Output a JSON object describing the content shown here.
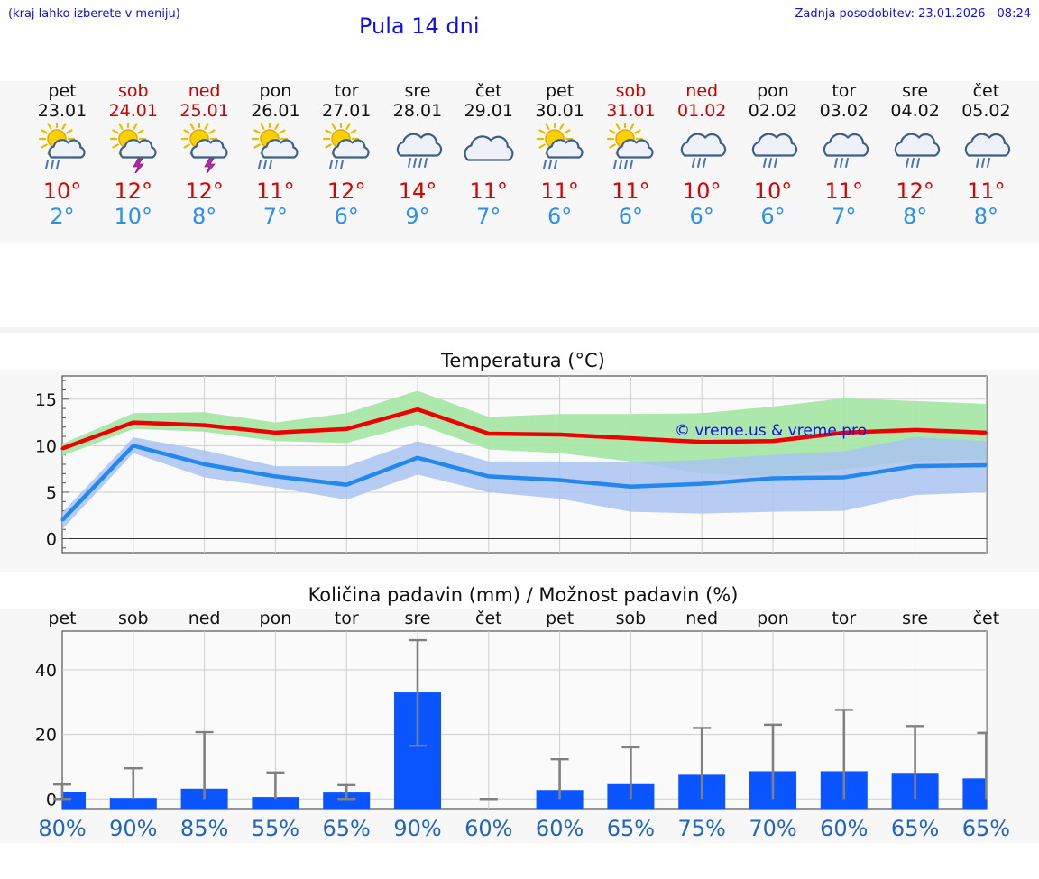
{
  "header": {
    "hint": "(kraj lahko izberete v meniju)",
    "title": "Pula 14 dni",
    "updated": "Zadnja posodobitev: 23.01.2026 - 08:24"
  },
  "days": [
    {
      "name": "pet",
      "date": "23.01",
      "weekend": false,
      "icon": "sun-cloud-rain-icon",
      "tmax": "10°",
      "tmin": "2°"
    },
    {
      "name": "sob",
      "date": "24.01",
      "weekend": true,
      "icon": "sun-cloud-thunder-icon",
      "tmax": "12°",
      "tmin": "10°"
    },
    {
      "name": "ned",
      "date": "25.01",
      "weekend": true,
      "icon": "sun-cloud-thunder-icon",
      "tmax": "12°",
      "tmin": "8°"
    },
    {
      "name": "pon",
      "date": "26.01",
      "weekend": false,
      "icon": "sun-cloud-rain-icon",
      "tmax": "11°",
      "tmin": "7°"
    },
    {
      "name": "tor",
      "date": "27.01",
      "weekend": false,
      "icon": "sun-cloud-rain-icon",
      "tmax": "12°",
      "tmin": "6°"
    },
    {
      "name": "sre",
      "date": "28.01",
      "weekend": false,
      "icon": "cloud-heavy-rain-icon",
      "tmax": "14°",
      "tmin": "9°"
    },
    {
      "name": "čet",
      "date": "29.01",
      "weekend": false,
      "icon": "cloud-icon",
      "tmax": "11°",
      "tmin": "7°"
    },
    {
      "name": "pet",
      "date": "30.01",
      "weekend": false,
      "icon": "sun-cloud-rain-icon",
      "tmax": "11°",
      "tmin": "6°"
    },
    {
      "name": "sob",
      "date": "31.01",
      "weekend": true,
      "icon": "sun-cloud-heavy-rain-icon",
      "tmax": "11°",
      "tmin": "6°"
    },
    {
      "name": "ned",
      "date": "01.02",
      "weekend": true,
      "icon": "cloud-rain-icon",
      "tmax": "10°",
      "tmin": "6°"
    },
    {
      "name": "pon",
      "date": "02.02",
      "weekend": false,
      "icon": "cloud-rain-icon",
      "tmax": "10°",
      "tmin": "6°"
    },
    {
      "name": "tor",
      "date": "03.02",
      "weekend": false,
      "icon": "cloud-rain-icon",
      "tmax": "11°",
      "tmin": "7°"
    },
    {
      "name": "sre",
      "date": "04.02",
      "weekend": false,
      "icon": "cloud-rain-icon",
      "tmax": "12°",
      "tmin": "8°"
    },
    {
      "name": "čet",
      "date": "05.02",
      "weekend": false,
      "icon": "cloud-rain-icon",
      "tmax": "11°",
      "tmin": "8°"
    }
  ],
  "colors": {
    "max_line": "#ee0000",
    "min_line": "#2288ee",
    "max_band": "#a8e6a8",
    "min_band": "#a9c3f0",
    "bar": "#0a55ff",
    "error": "#808080",
    "pct": "#2266bb",
    "accent": "#1010e0"
  },
  "chart_data": [
    {
      "type": "line",
      "title": "Temperatura (°C)",
      "watermark": "© vreme.us & vreme.pro",
      "ylim": [
        -1.5,
        17.5
      ],
      "yticks": [
        0,
        5,
        10,
        15
      ],
      "x": [
        0,
        1,
        2,
        3,
        4,
        5,
        6,
        7,
        8,
        9,
        10,
        11,
        12,
        13
      ],
      "series": [
        {
          "name": "max",
          "values": [
            9.7,
            12.5,
            12.2,
            11.4,
            11.8,
            13.9,
            11.3,
            11.2,
            10.8,
            10.4,
            10.5,
            11.4,
            11.7,
            11.4
          ],
          "band_low": [
            8.9,
            11.8,
            11.5,
            10.5,
            10.3,
            12.3,
            9.6,
            9.2,
            8.3,
            7.0,
            6.7,
            7.5,
            8.3,
            8.5
          ],
          "band_high": [
            10.2,
            13.5,
            13.6,
            12.5,
            13.5,
            15.9,
            13.1,
            13.4,
            13.4,
            13.5,
            14.2,
            15.1,
            14.8,
            14.5
          ]
        },
        {
          "name": "min",
          "values": [
            2.0,
            10.0,
            8.0,
            6.7,
            5.8,
            8.7,
            6.7,
            6.3,
            5.6,
            5.9,
            6.5,
            6.6,
            7.8,
            7.9
          ],
          "band_low": [
            1.0,
            9.2,
            6.6,
            5.5,
            4.2,
            6.9,
            5.0,
            4.3,
            2.9,
            2.7,
            2.9,
            3.0,
            4.7,
            5.0
          ],
          "band_high": [
            2.8,
            10.9,
            9.5,
            7.8,
            7.8,
            10.5,
            8.3,
            8.3,
            8.2,
            8.5,
            9.0,
            9.4,
            10.9,
            10.5
          ]
        }
      ]
    },
    {
      "type": "bar",
      "title": "Količina padavin (mm) / Možnost padavin (%)",
      "ylim": [
        -3,
        52
      ],
      "yticks": [
        0,
        20,
        40
      ],
      "categories": [
        "pet",
        "sob",
        "ned",
        "pon",
        "tor",
        "sre",
        "čet",
        "pet",
        "sob",
        "ned",
        "pon",
        "tor",
        "sre",
        "čet"
      ],
      "values": [
        2.2,
        0.3,
        3.2,
        0.6,
        2.0,
        33.0,
        0.0,
        2.8,
        4.6,
        7.5,
        8.6,
        8.6,
        8.1,
        6.4
      ],
      "error_low": [
        0.0,
        0.0,
        0.0,
        0.0,
        0.0,
        16.5,
        0.0,
        0.0,
        0.0,
        0.0,
        0.0,
        0.0,
        0.0,
        0.0
      ],
      "error_high": [
        4.5,
        9.5,
        20.7,
        8.2,
        4.3,
        49.2,
        0.0,
        12.3,
        16.0,
        22.0,
        23.0,
        27.6,
        22.6,
        20.5
      ],
      "probability": [
        "80%",
        "90%",
        "85%",
        "55%",
        "65%",
        "90%",
        "60%",
        "60%",
        "65%",
        "75%",
        "70%",
        "60%",
        "65%",
        "65%"
      ]
    }
  ]
}
